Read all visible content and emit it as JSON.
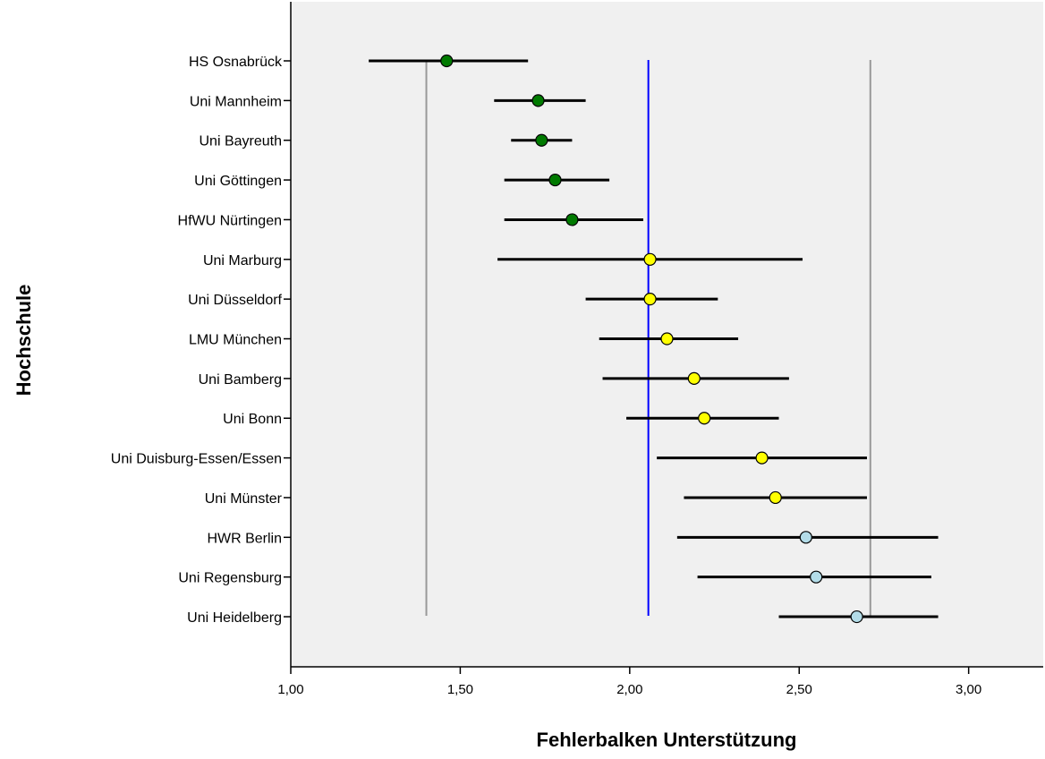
{
  "chart_data": {
    "type": "scatter",
    "title": "",
    "xlabel": "Fehlerbalken Unterstützung",
    "ylabel": "Hochschule",
    "xlim": [
      1.0,
      3.22
    ],
    "xticks": [
      {
        "value": 1.0,
        "label": "1,00"
      },
      {
        "value": 1.5,
        "label": "1,50"
      },
      {
        "value": 2.0,
        "label": "2,00"
      },
      {
        "value": 2.5,
        "label": "2,50"
      },
      {
        "value": 3.0,
        "label": "3,00"
      }
    ],
    "grid": false,
    "legend": "none",
    "background_color": "#f0f0f0",
    "group_colors": {
      "green": "#007a00",
      "yellow": "#ffff00",
      "lightblue": "#b3dce8"
    },
    "reference_lines": [
      {
        "x": 1.4,
        "color": "#999999"
      },
      {
        "x": 2.055,
        "color": "#0000ff"
      },
      {
        "x": 2.71,
        "color": "#999999"
      }
    ],
    "categories": [
      "HS Osnabrück",
      "Uni Mannheim",
      "Uni Bayreuth",
      "Uni Göttingen",
      "HfWU Nürtingen",
      "Uni Marburg",
      "Uni Düsseldorf",
      "LMU München",
      "Uni Bamberg",
      "Uni Bonn",
      "Uni Duisburg-Essen/Essen",
      "Uni Münster",
      "HWR Berlin",
      "Uni Regensburg",
      "Uni Heidelberg"
    ],
    "points": [
      {
        "category": "HS Osnabrück",
        "mean": 1.46,
        "low": 1.23,
        "high": 1.7,
        "group": "green"
      },
      {
        "category": "Uni Mannheim",
        "mean": 1.73,
        "low": 1.6,
        "high": 1.87,
        "group": "green"
      },
      {
        "category": "Uni Bayreuth",
        "mean": 1.74,
        "low": 1.65,
        "high": 1.83,
        "group": "green"
      },
      {
        "category": "Uni Göttingen",
        "mean": 1.78,
        "low": 1.63,
        "high": 1.94,
        "group": "green"
      },
      {
        "category": "HfWU Nürtingen",
        "mean": 1.83,
        "low": 1.63,
        "high": 2.04,
        "group": "green"
      },
      {
        "category": "Uni Marburg",
        "mean": 2.06,
        "low": 1.61,
        "high": 2.51,
        "group": "yellow"
      },
      {
        "category": "Uni Düsseldorf",
        "mean": 2.06,
        "low": 1.87,
        "high": 2.26,
        "group": "yellow"
      },
      {
        "category": "LMU München",
        "mean": 2.11,
        "low": 1.91,
        "high": 2.32,
        "group": "yellow"
      },
      {
        "category": "Uni Bamberg",
        "mean": 2.19,
        "low": 1.92,
        "high": 2.47,
        "group": "yellow"
      },
      {
        "category": "Uni Bonn",
        "mean": 2.22,
        "low": 1.99,
        "high": 2.44,
        "group": "yellow"
      },
      {
        "category": "Uni Duisburg-Essen/Essen",
        "mean": 2.39,
        "low": 2.08,
        "high": 2.7,
        "group": "yellow"
      },
      {
        "category": "Uni Münster",
        "mean": 2.43,
        "low": 2.16,
        "high": 2.7,
        "group": "yellow"
      },
      {
        "category": "HWR Berlin",
        "mean": 2.52,
        "low": 2.14,
        "high": 2.91,
        "group": "lightblue"
      },
      {
        "category": "Uni Regensburg",
        "mean": 2.55,
        "low": 2.2,
        "high": 2.89,
        "group": "lightblue"
      },
      {
        "category": "Uni Heidelberg",
        "mean": 2.67,
        "low": 2.44,
        "high": 2.91,
        "group": "lightblue"
      }
    ]
  }
}
